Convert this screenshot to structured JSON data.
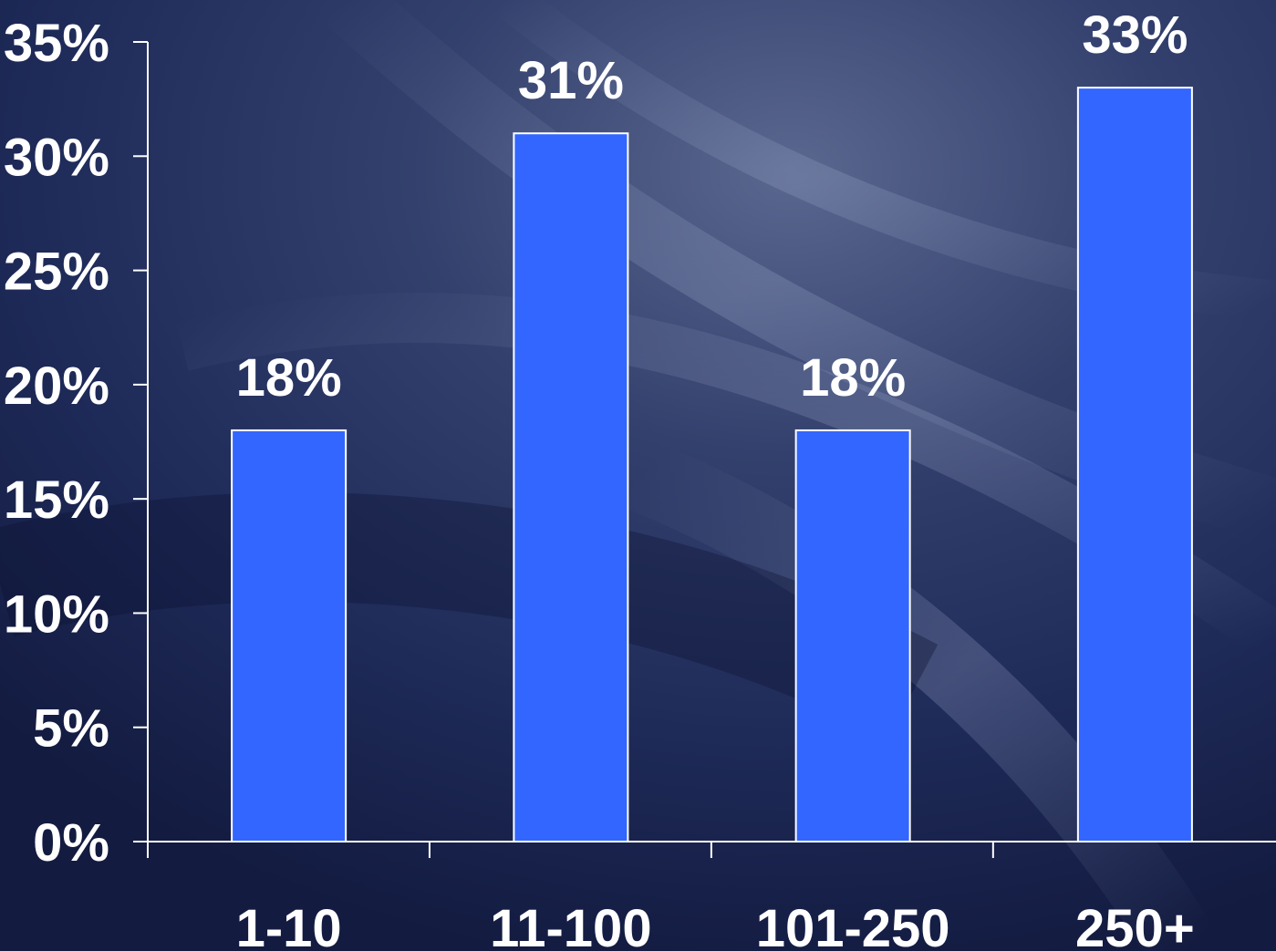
{
  "chart_data": {
    "type": "bar",
    "categories": [
      "1-10",
      "11-100",
      "101-250",
      "250+"
    ],
    "values": [
      18,
      31,
      18,
      33
    ],
    "data_labels": [
      "18%",
      "31%",
      "18%",
      "33%"
    ],
    "title": "",
    "xlabel": "",
    "ylabel": "",
    "ylim": [
      0,
      35
    ],
    "y_ticks": [
      0,
      5,
      10,
      15,
      20,
      25,
      30,
      35
    ],
    "y_tick_labels": [
      "0%",
      "5%",
      "10%",
      "15%",
      "20%",
      "25%",
      "30%",
      "35%"
    ],
    "grid": false,
    "legend": "none",
    "colors": {
      "bar_fill": "#3366ff",
      "bar_stroke": "#ffffff",
      "axis": "#ffffff",
      "text": "#ffffff"
    }
  }
}
